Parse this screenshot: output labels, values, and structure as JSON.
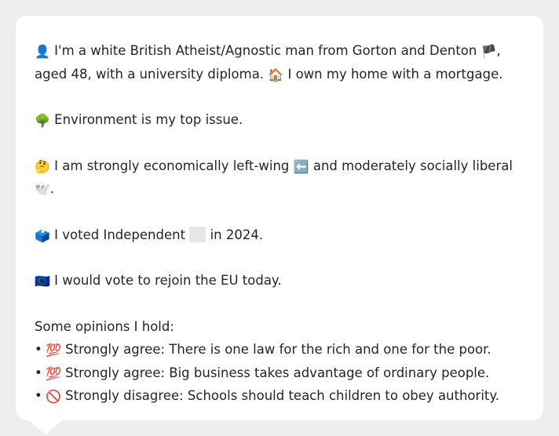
{
  "profile": {
    "intro_icon": "👤",
    "intro_text_1": "I'm a white British Atheist/Agnostic man from Gorton and Denton",
    "intro_flag": "🏴",
    "intro_text_2": ", aged 48, with a university diploma.",
    "home_icon": "🏠",
    "home_text": "I own my home with a mortgage.",
    "issue_icon": "🌳",
    "issue_text": "Environment is my top issue.",
    "ideology_icon": "🤔",
    "ideology_text_1": "I am strongly economically left-wing",
    "left_arrow_icon": "⬅️",
    "ideology_text_2": "and moderately socially liberal",
    "dove_icon": "🕊️",
    "ideology_end": ".",
    "vote_icon": "🗳️",
    "vote_text_1": "I voted Independent",
    "vote_text_2": "in 2024.",
    "eu_icon": "🇪🇺",
    "eu_text": "I would vote to rejoin the EU today.",
    "opinions_heading": "Some opinions I hold:",
    "opinions": [
      {
        "bullet": "•",
        "icon": "💯",
        "text": "Strongly agree: There is one law for the rich and one for the poor."
      },
      {
        "bullet": "•",
        "icon": "💯",
        "text": "Strongly agree: Big business takes advantage of ordinary people."
      },
      {
        "bullet": "•",
        "icon": "🚫",
        "text": "Strongly disagree: Schools should teach children to obey authority."
      }
    ]
  },
  "colors": {
    "background": "#eceef0",
    "bubble": "#ffffff",
    "text": "#1f2328",
    "placeholder": "#e4e6e8"
  }
}
